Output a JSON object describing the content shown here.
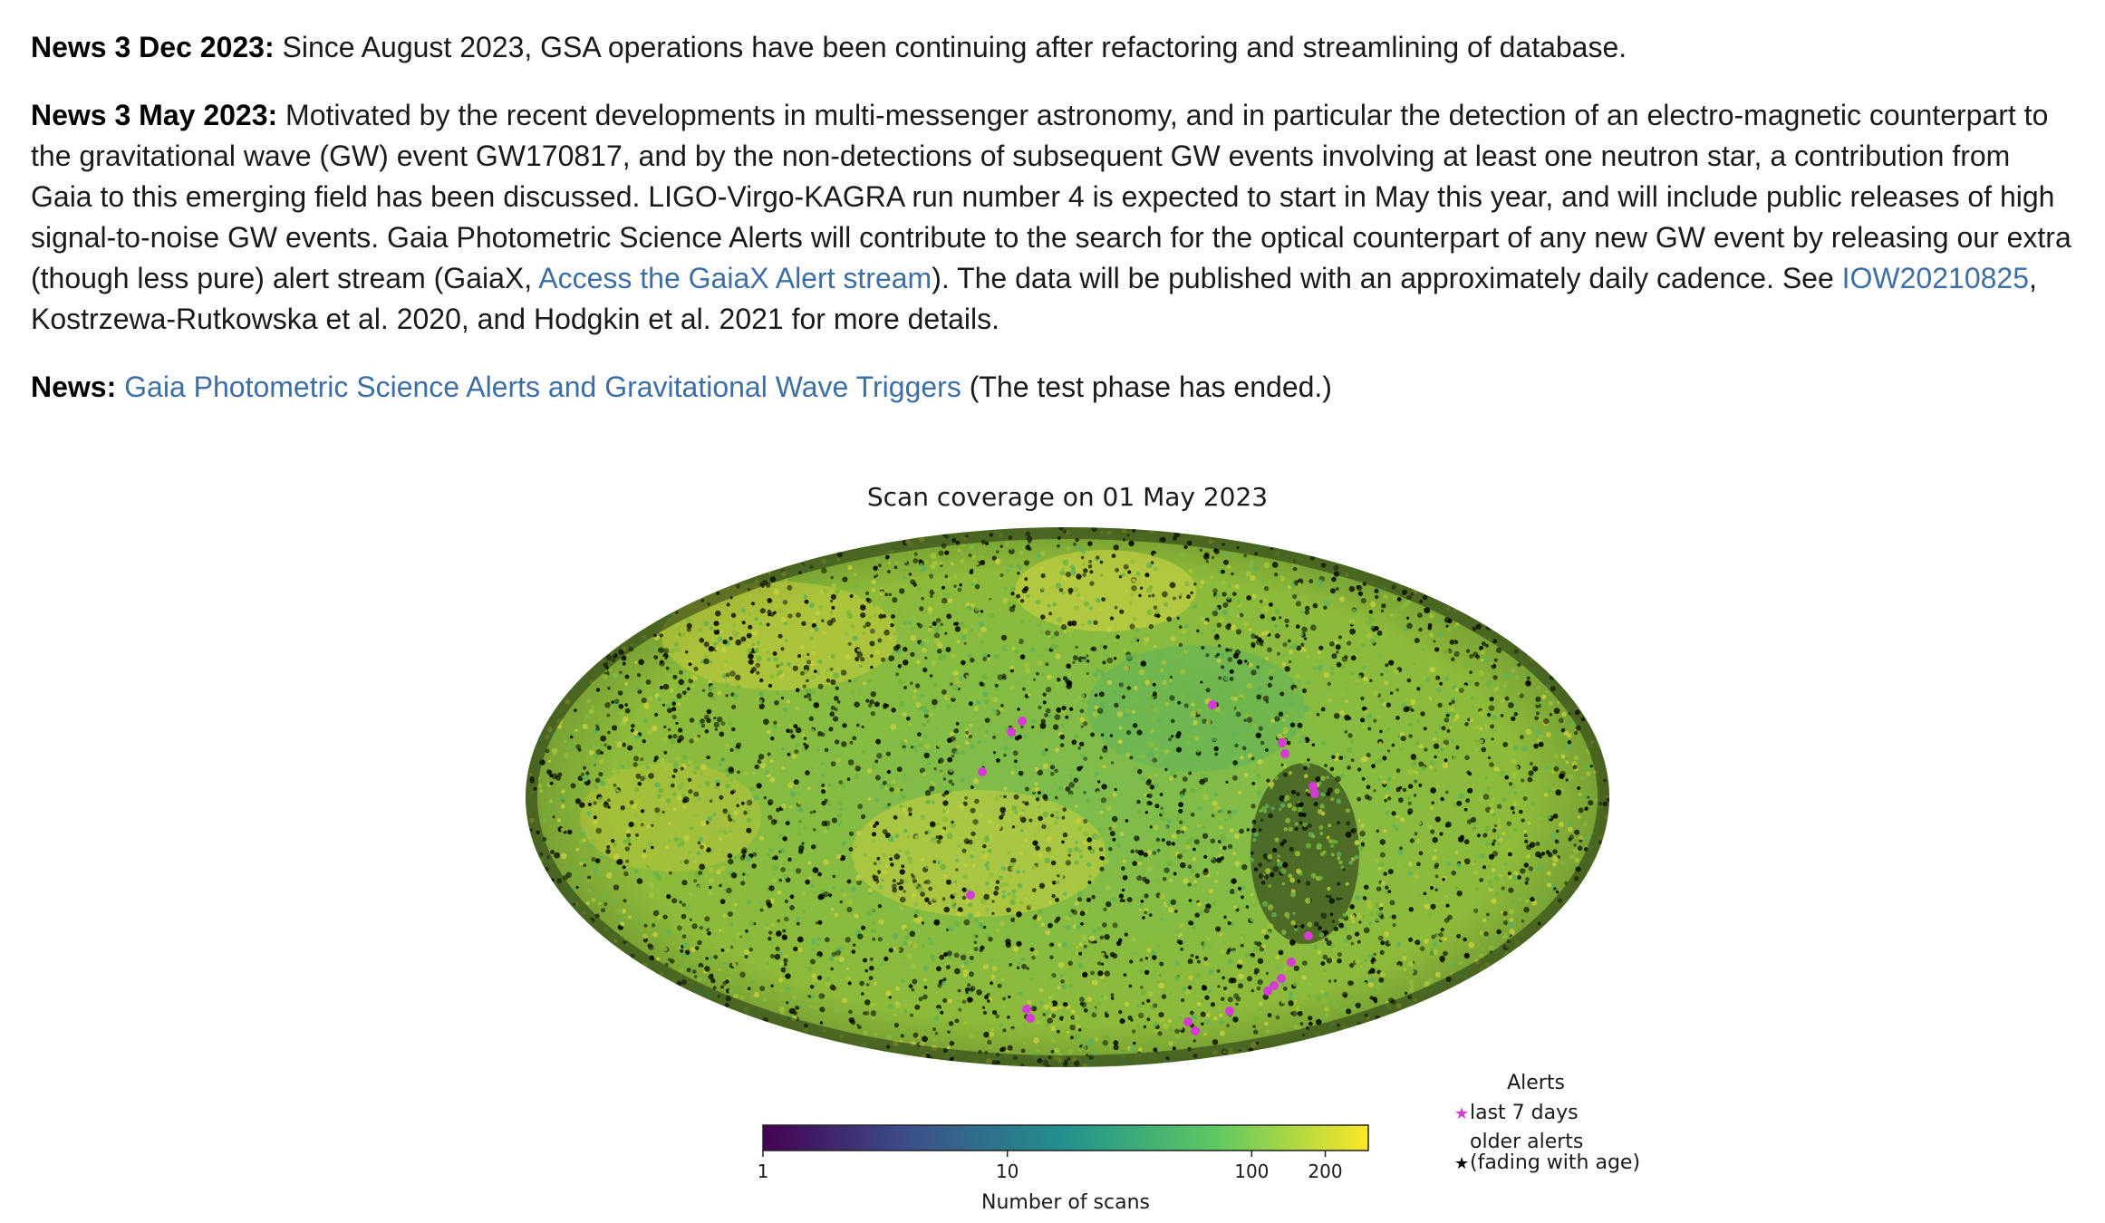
{
  "news": [
    {
      "label": "News 3 Dec 2023:",
      "parts": [
        {
          "text": " Since August 2023, GSA operations have been continuing after refactoring and streamlining of database."
        }
      ]
    },
    {
      "label": "News 3 May 2023:",
      "parts": [
        {
          "text": " Motivated by the recent developments in multi-messenger astronomy, and in particular the detection of an electro-magnetic counterpart to the gravitational wave (GW) event GW170817, and by the non-detections of subsequent GW events involving at least one neutron star, a contribution from Gaia to this emerging field has been discussed. LIGO-Virgo-KAGRA run number 4 is expected to start in May this year, and will include public releases of high signal-to-noise GW events. Gaia Photometric Science Alerts will contribute to the search for the optical counterpart of any new GW event by releasing our extra (though less pure) alert stream (GaiaX, "
        },
        {
          "text": "Access the GaiaX Alert stream",
          "link": true
        },
        {
          "text": "). The data will be published with an approximately daily cadence. See "
        },
        {
          "text": "IOW20210825",
          "link": true
        },
        {
          "text": ", Kostrzewa-Rutkowska et al. 2020, and Hodgkin et al. 2021 for more details."
        }
      ]
    },
    {
      "label": "News:",
      "parts": [
        {
          "text": " "
        },
        {
          "text": "Gaia Photometric Science Alerts and Gravitational Wave Triggers",
          "link": true
        },
        {
          "text": " (The test phase has ended.)"
        }
      ]
    }
  ],
  "figure": {
    "title": "Scan coverage on 01 May 2023",
    "colorbar": {
      "label": "Number of scans",
      "scale": "log",
      "range": [
        1,
        300
      ],
      "ticks": [
        {
          "value": 1,
          "label": "1"
        },
        {
          "value": 10,
          "label": "10"
        },
        {
          "value": 100,
          "label": "100"
        },
        {
          "value": 200,
          "label": "200"
        }
      ],
      "colormap": [
        "#440154",
        "#3b528b",
        "#21918c",
        "#5ec962",
        "#fde725"
      ]
    },
    "legend": {
      "title": "Alerts",
      "items": [
        {
          "marker": "star",
          "color": "#d63bd6",
          "label": "last 7 days"
        },
        {
          "marker": "star",
          "color": "#000000",
          "label_lines": [
            "older alerts",
            "(fading with age)"
          ]
        }
      ]
    },
    "map": {
      "projection": "Mollweide",
      "base_colors": [
        "#6cb33f",
        "#8dbb3a",
        "#a8c53a",
        "#c9cf3f",
        "#5eb25a",
        "#7fb846"
      ],
      "alert_color": "#d63bd6",
      "older_alert_color": "#000000"
    }
  }
}
